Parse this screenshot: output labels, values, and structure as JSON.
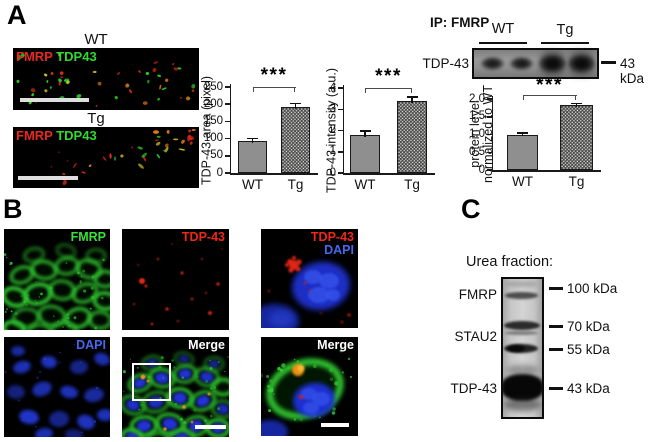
{
  "figure": {
    "panelA": {
      "label": "A",
      "micrographs": [
        {
          "title": "WT",
          "overlay_labels": [
            {
              "text": "FMRP",
              "color": "#e8281e"
            },
            {
              "text": "TDP43",
              "color": "#30d830"
            }
          ]
        },
        {
          "title": "Tg",
          "overlay_labels": [
            {
              "text": "FMRP",
              "color": "#e8281e"
            },
            {
              "text": "TDP43",
              "color": "#30d830"
            }
          ]
        }
      ],
      "ip_blot": {
        "title": "IP: FMRP",
        "groups": [
          "WT",
          "Tg"
        ],
        "band_label": "TDP-43",
        "marker_label": "43 kDa"
      }
    },
    "panelB": {
      "label": "B",
      "tiles": [
        {
          "labels": [
            {
              "text": "FMRP",
              "color": "#3ae03a"
            }
          ]
        },
        {
          "labels": [
            {
              "text": "TDP-43",
              "color": "#f02818"
            }
          ]
        },
        {
          "labels": [
            {
              "text": "TDP-43",
              "color": "#f02818"
            },
            {
              "text": "DAPI",
              "color": "#4468f0"
            }
          ]
        },
        {
          "labels": [
            {
              "text": "DAPI",
              "color": "#4468f0"
            }
          ]
        },
        {
          "labels": [
            {
              "text": "Merge",
              "color": "#ffffff"
            }
          ]
        },
        {
          "labels": [
            {
              "text": "Merge",
              "color": "#ffffff"
            }
          ]
        }
      ]
    },
    "panelC": {
      "label": "C",
      "title": "Urea fraction:",
      "protein_labels": [
        "FMRP",
        "STAU2",
        "TDP-43"
      ],
      "markers": [
        "100 kDa",
        "70 kDa",
        "55 kDa",
        "43 kDa"
      ]
    },
    "colors": {
      "fmrp_red": "#e8281e",
      "tdp43_green": "#30d830",
      "dapi_blue": "#4468f0",
      "bar_gray": "#8f8f8f"
    }
  },
  "chart_data": [
    {
      "type": "bar",
      "categories": [
        "WT",
        "Tg"
      ],
      "values": [
        93,
        192
      ],
      "errors": [
        8,
        10
      ],
      "title": "",
      "xlabel": "",
      "ylabel": "TDP-43 area (pixel)",
      "ylim": [
        0,
        250
      ],
      "yticks": [
        0,
        50,
        100,
        150,
        200,
        250
      ],
      "ytick_labels": [
        "0",
        "50",
        "100",
        "150",
        "200",
        "250"
      ],
      "significance": "***",
      "legend": null,
      "grid": false
    },
    {
      "type": "bar",
      "categories": [
        "WT",
        "Tg"
      ],
      "values": [
        1.8,
        3.4
      ],
      "errors": [
        0.17,
        0.18
      ],
      "title": "",
      "xlabel": "",
      "ylabel": "TDP-43 intensity (a.u.)",
      "ylim": [
        0,
        4
      ],
      "yticks": [
        0,
        1,
        2,
        3,
        4
      ],
      "ytick_labels": [
        "0",
        "1",
        "2",
        "3",
        "4"
      ],
      "significance": "***",
      "legend": null,
      "grid": false
    },
    {
      "type": "bar",
      "categories": [
        "WT",
        "Tg"
      ],
      "values": [
        1.0,
        1.82
      ],
      "errors": [
        0.04,
        0.05
      ],
      "title": "",
      "xlabel": "",
      "ylabel": "protein level\nnormalized to WT",
      "ylim": [
        0,
        2
      ],
      "yticks": [
        0,
        0.5,
        1.0,
        1.5,
        2.0
      ],
      "ytick_labels": [
        "0",
        "0.5",
        "1.0",
        "1.5",
        "2.0"
      ],
      "significance": "***",
      "legend": null,
      "grid": false
    }
  ]
}
